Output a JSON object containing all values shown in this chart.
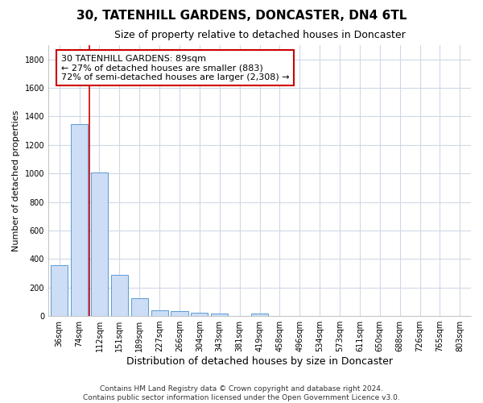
{
  "title": "30, TATENHILL GARDENS, DONCASTER, DN4 6TL",
  "subtitle": "Size of property relative to detached houses in Doncaster",
  "xlabel": "Distribution of detached houses by size in Doncaster",
  "ylabel": "Number of detached properties",
  "bar_values": [
    355,
    1345,
    1007,
    289,
    125,
    42,
    35,
    25,
    20,
    0,
    20,
    0,
    0,
    0,
    0,
    0,
    0,
    0,
    0,
    0,
    0
  ],
  "bar_labels": [
    "36sqm",
    "74sqm",
    "112sqm",
    "151sqm",
    "189sqm",
    "227sqm",
    "266sqm",
    "304sqm",
    "343sqm",
    "381sqm",
    "419sqm",
    "458sqm",
    "496sqm",
    "534sqm",
    "573sqm",
    "611sqm",
    "650sqm",
    "688sqm",
    "726sqm",
    "765sqm",
    "803sqm"
  ],
  "bar_color": "#ccddf5",
  "bar_edge_color": "#5b9bd5",
  "vline_x": 1.5,
  "annotation_line1": "30 TATENHILL GARDENS: 89sqm",
  "annotation_line2": "← 27% of detached houses are smaller (883)",
  "annotation_line3": "72% of semi-detached houses are larger (2,308) →",
  "annotation_box_color": "#cc0000",
  "vline_color": "#cc0000",
  "ylim": [
    0,
    1900
  ],
  "yticks": [
    0,
    200,
    400,
    600,
    800,
    1000,
    1200,
    1400,
    1600,
    1800
  ],
  "footer_line1": "Contains HM Land Registry data © Crown copyright and database right 2024.",
  "footer_line2": "Contains public sector information licensed under the Open Government Licence v3.0.",
  "background_color": "#ffffff",
  "grid_color": "#d0d8e8",
  "title_fontsize": 11,
  "subtitle_fontsize": 9,
  "ylabel_fontsize": 8,
  "xlabel_fontsize": 9,
  "tick_fontsize": 7,
  "footer_fontsize": 6.5
}
